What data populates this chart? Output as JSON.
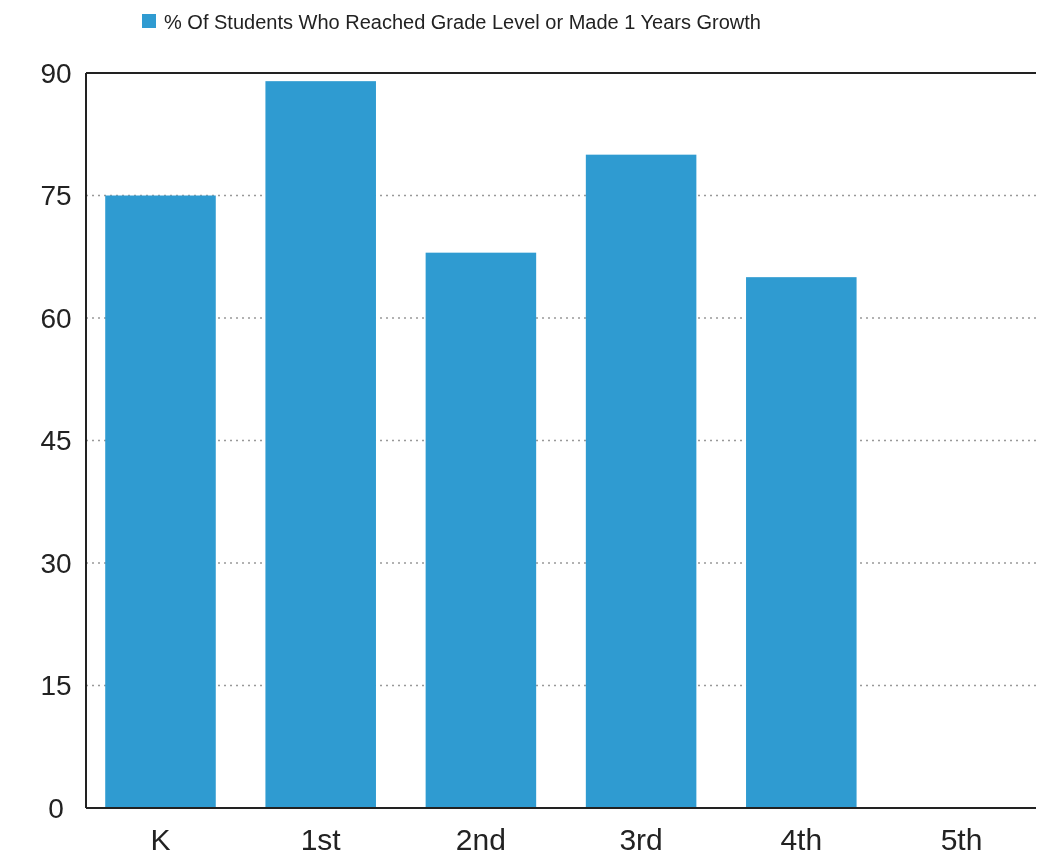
{
  "chart_data": {
    "type": "bar",
    "categories": [
      "K",
      "1st",
      "2nd",
      "3rd",
      "4th",
      "5th"
    ],
    "series": [
      {
        "name": "% Of Students Who Reached Grade Level or Made 1 Years Growth",
        "color": "#2f9bd1",
        "values": [
          75,
          89,
          68,
          80,
          65,
          null
        ]
      }
    ],
    "ylim": [
      0,
      90
    ],
    "yticks": [
      0,
      15,
      30,
      45,
      60,
      75,
      90
    ],
    "grid": "y",
    "legend": "top"
  }
}
